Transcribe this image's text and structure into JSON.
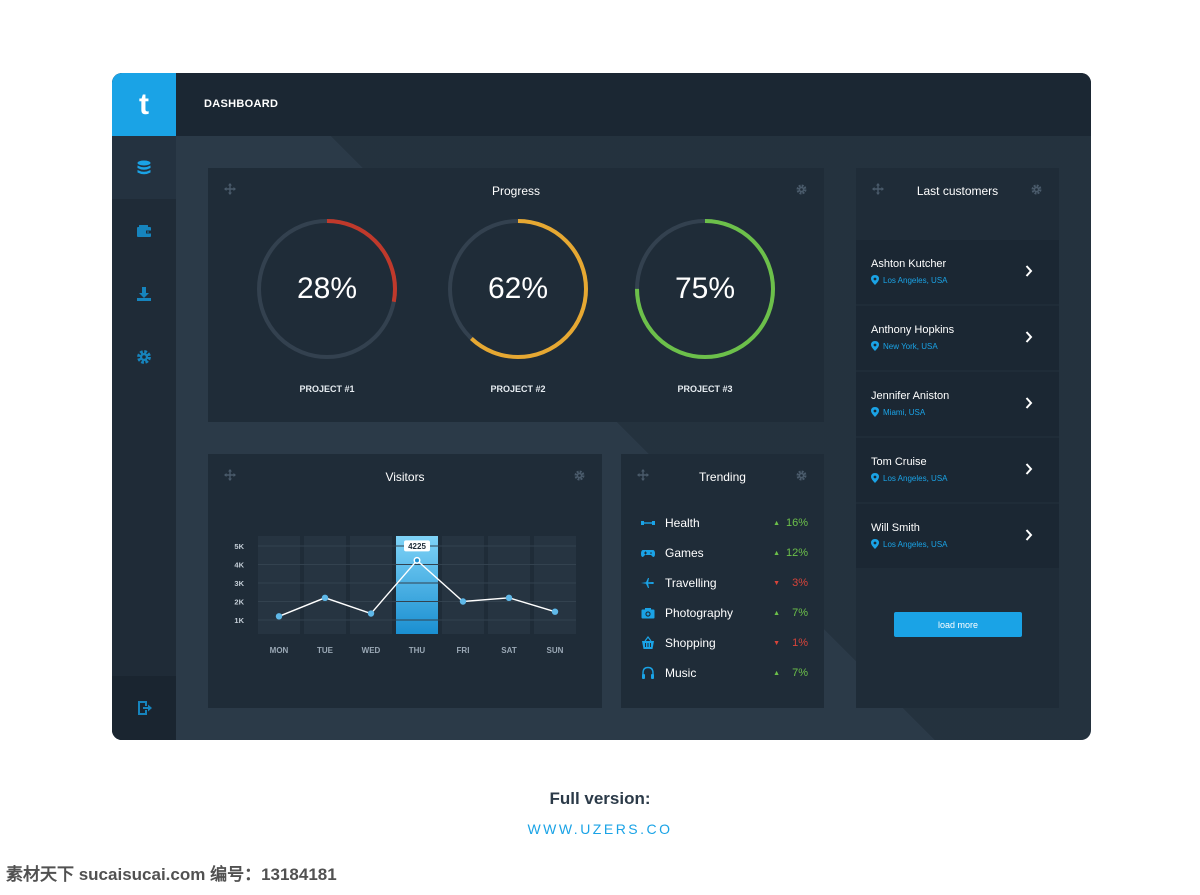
{
  "sidebar": {
    "logo": "t",
    "items": [
      {
        "icon": "database-icon"
      },
      {
        "icon": "wallet-icon"
      },
      {
        "icon": "download-icon"
      },
      {
        "icon": "gear-icon"
      }
    ],
    "bottom_icon": "logout-icon"
  },
  "header": {
    "title": "DASHBOARD"
  },
  "progress": {
    "title": "Progress",
    "projects": [
      {
        "label": "PROJECT #1",
        "value_text": "28%",
        "value": 0.28,
        "color": "#c0392b"
      },
      {
        "label": "PROJECT #2",
        "value_text": "62%",
        "value": 0.62,
        "color": "#e6a832"
      },
      {
        "label": "PROJECT #3",
        "value_text": "75%",
        "value": 0.75,
        "color": "#6cc04a"
      }
    ]
  },
  "visitors": {
    "title": "Visitors",
    "chart_data": {
      "type": "line",
      "categories": [
        "MON",
        "TUE",
        "WED",
        "THU",
        "FRI",
        "SAT",
        "SUN"
      ],
      "values": [
        1200,
        2200,
        1350,
        4225,
        2000,
        2200,
        1450
      ],
      "highlight": {
        "category": "THU",
        "label": "4225"
      },
      "y_ticks": [
        "1K",
        "2K",
        "3K",
        "4K",
        "5K"
      ],
      "ylim": [
        0,
        5000
      ],
      "grid": true
    }
  },
  "trending": {
    "title": "Trending",
    "items": [
      {
        "name": "Health",
        "icon": "dumbbell-icon",
        "direction": "up",
        "change": "16%"
      },
      {
        "name": "Games",
        "icon": "gamepad-icon",
        "direction": "up",
        "change": "12%"
      },
      {
        "name": "Travelling",
        "icon": "plane-icon",
        "direction": "down",
        "change": "3%"
      },
      {
        "name": "Photography",
        "icon": "camera-icon",
        "direction": "up",
        "change": "7%"
      },
      {
        "name": "Shopping",
        "icon": "basket-icon",
        "direction": "down",
        "change": "1%"
      },
      {
        "name": "Music",
        "icon": "headphones-icon",
        "direction": "up",
        "change": "7%"
      }
    ],
    "colors": {
      "up": "#6cc04a",
      "down": "#d9443a"
    }
  },
  "customers": {
    "title": "Last customers",
    "items": [
      {
        "name": "Ashton Kutcher",
        "location": "Los Angeles, USA"
      },
      {
        "name": "Anthony Hopkins",
        "location": "New York, USA"
      },
      {
        "name": "Jennifer Aniston",
        "location": "Miami, USA"
      },
      {
        "name": "Tom Cruise",
        "location": "Los Angeles, USA"
      },
      {
        "name": "Will Smith",
        "location": "Los Angeles, USA"
      }
    ],
    "load_more": "load more"
  },
  "footer": {
    "title": "Full version:",
    "url": "WWW.UZERS.CO",
    "watermark": "素材天下 sucaisucai.com  编号：13184181"
  },
  "colors": {
    "accent": "#1aa3e6",
    "panel": "#1f2c38",
    "background": "#2b3a48"
  }
}
